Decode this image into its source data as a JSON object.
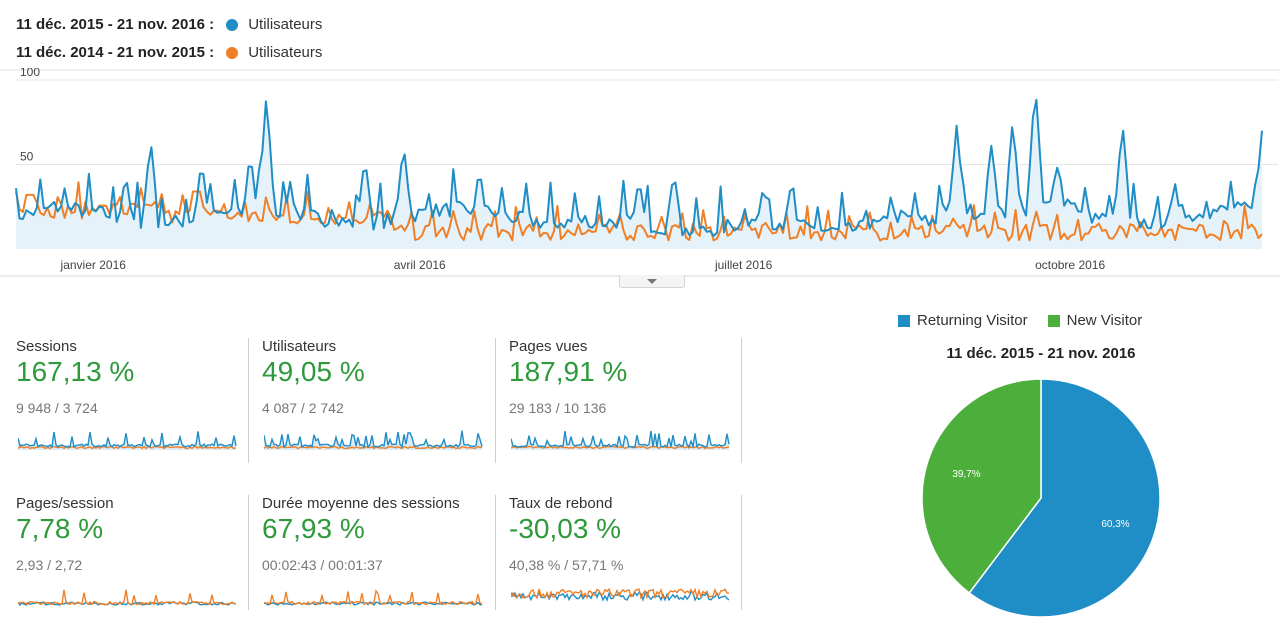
{
  "legend": [
    {
      "period": "11 déc. 2015 - 21 nov. 2016 :",
      "series": "Utilisateurs",
      "color": "#1f8dc6"
    },
    {
      "period": "11 déc. 2014 - 21 nov. 2015 :",
      "series": "Utilisateurs",
      "color": "#f07f26"
    }
  ],
  "chart_data": [
    {
      "type": "line",
      "y_ticks": [
        "100",
        "50"
      ],
      "ylim": [
        0,
        100
      ],
      "x_ticks": [
        "janvier 2016",
        "avril 2016",
        "juillet 2016",
        "octobre 2016"
      ],
      "grid": true,
      "series": [
        {
          "name": "Utilisateurs",
          "period": "11 déc. 2015 - 21 nov. 2016",
          "color": "#1f8dc6",
          "fill": true
        },
        {
          "name": "Utilisateurs",
          "period": "11 déc. 2014 - 21 nov. 2015",
          "color": "#f07f26",
          "fill": false
        }
      ],
      "peaks": [
        {
          "x": 0.03,
          "y": 30
        },
        {
          "x": 0.088,
          "y": 45
        },
        {
          "x": 0.108,
          "y": 65
        },
        {
          "x": 0.149,
          "y": 53
        },
        {
          "x": 0.188,
          "y": 58
        },
        {
          "x": 0.201,
          "y": 92
        },
        {
          "x": 0.22,
          "y": 40
        },
        {
          "x": 0.28,
          "y": 55
        },
        {
          "x": 0.311,
          "y": 63
        },
        {
          "x": 0.372,
          "y": 48
        },
        {
          "x": 0.5,
          "y": 42
        },
        {
          "x": 0.528,
          "y": 46
        },
        {
          "x": 0.6,
          "y": 38
        },
        {
          "x": 0.622,
          "y": 38
        },
        {
          "x": 0.755,
          "y": 74
        },
        {
          "x": 0.783,
          "y": 63
        },
        {
          "x": 0.8,
          "y": 77
        },
        {
          "x": 0.818,
          "y": 99
        },
        {
          "x": 0.835,
          "y": 52
        },
        {
          "x": 0.888,
          "y": 75
        },
        {
          "x": 0.93,
          "y": 40
        },
        {
          "x": 1.0,
          "y": 70
        }
      ]
    },
    {
      "type": "pie",
      "title": "11 déc. 2015 - 21 nov. 2016",
      "slices": [
        {
          "name": "Returning Visitor",
          "value": 60.3,
          "label": "60,3%",
          "color": "#1f8dc6"
        },
        {
          "name": "New Visitor",
          "value": 39.7,
          "label": "39,7%",
          "color": "#4caf3c"
        }
      ],
      "legend": "top"
    }
  ],
  "metrics": [
    {
      "label": "Sessions",
      "change": "167,13 %",
      "values": "9 948 / 3 724",
      "spark": "a"
    },
    {
      "label": "Utilisateurs",
      "change": "49,05 %",
      "values": "4 087 / 2 742",
      "spark": "a"
    },
    {
      "label": "Pages vues",
      "change": "187,91 %",
      "values": "29 183 / 10 136",
      "spark": "a"
    },
    {
      "label": "Pages/session",
      "change": "7,78 %",
      "values": "2,93 / 2,72",
      "spark": "b"
    },
    {
      "label": "Durée moyenne des sessions",
      "change": "67,93 %",
      "values": "00:02:43 / 00:01:37",
      "spark": "b"
    },
    {
      "label": "Taux de rebond",
      "change": "-30,03 %",
      "values": "40,38 % / 57,71 %",
      "spark": "c"
    }
  ],
  "colors": {
    "current": "#1f8dc6",
    "previous": "#f07f26",
    "positive": "#2e9a3c",
    "new_visitor": "#4caf3c"
  },
  "icons": {
    "toggle": "chevron-down-icon"
  }
}
